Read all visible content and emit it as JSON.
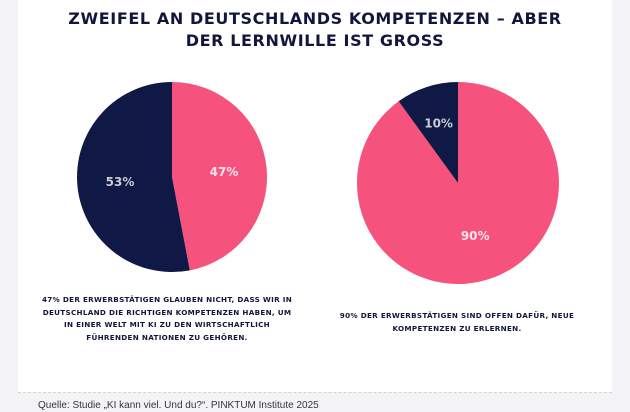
{
  "title_lines": [
    "ZWEIFEL AN DEUTSCHLANDS KOMPETENZEN – ABER",
    "DER LERNWILLE IST GROSS"
  ],
  "colors": {
    "navy": "#101945",
    "pink": "#f5537e",
    "label_on_navy": "#c9cbd6",
    "label_on_pink": "#ffe6ec"
  },
  "chart_data": [
    {
      "type": "pie",
      "slices": [
        {
          "label": "47%",
          "value": 47,
          "color": "#f5537e"
        },
        {
          "label": "53%",
          "value": 53,
          "color": "#101945"
        }
      ],
      "caption_lines": [
        "47% DER ERWERBSTÄTIGEN GLAUBEN NICHT, DASS WIR IN",
        "DEUTSCHLAND DIE RICHTIGEN KOMPETENZEN HABEN, UM",
        "IN EINER WELT MIT KI ZU DEN WIRTSCHAFTLICH",
        "FÜHRENDEN NATIONEN ZU GEHÖREN."
      ]
    },
    {
      "type": "pie",
      "slices": [
        {
          "label": "90%",
          "value": 90,
          "color": "#f5537e"
        },
        {
          "label": "10%",
          "value": 10,
          "color": "#101945"
        }
      ],
      "caption_lines": [
        "90% DER ERWERBSTÄTIGEN SIND OFFEN DAFÜR, NEUE",
        "KOMPETENZEN ZU ERLERNEN."
      ]
    }
  ],
  "source": "Quelle: Studie „KI kann viel. Und du?“. PINKTUM Institute 2025"
}
